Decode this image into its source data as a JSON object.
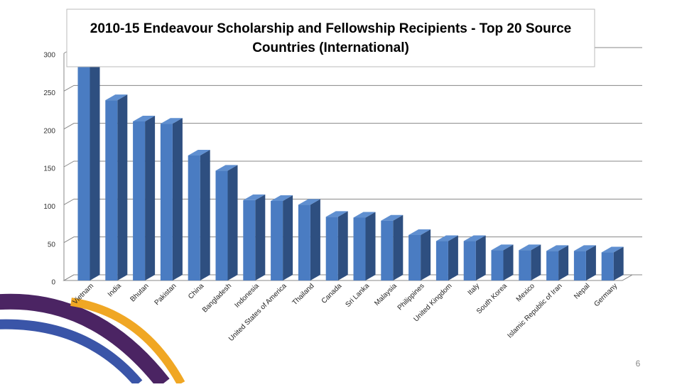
{
  "chart_data": {
    "type": "bar3d",
    "title": "2010-15 Endeavour Scholarship and Fellowship Recipients - Top 20 Source Countries (International)",
    "categories": [
      "Vietnam",
      "India",
      "Bhutan",
      "Pakistan",
      "China",
      "Bangladesh",
      "Indonesia",
      "United States of America",
      "Thailand",
      "Canada",
      "Sri Lanka",
      "Malaysia",
      "Philippines",
      "United Kingdom",
      "Italy",
      "South Korea",
      "Mexico",
      "Islamic Republic of Iran",
      "Nepal",
      "Germany"
    ],
    "values": [
      285,
      238,
      210,
      207,
      165,
      145,
      106,
      105,
      100,
      84,
      83,
      79,
      60,
      52,
      52,
      40,
      40,
      39,
      39,
      37
    ],
    "color": "#4a7cc2",
    "ylim": [
      0,
      300
    ],
    "yticks": [
      0,
      50,
      100,
      150,
      200,
      250,
      300
    ],
    "grid": true
  },
  "page_number": "6"
}
